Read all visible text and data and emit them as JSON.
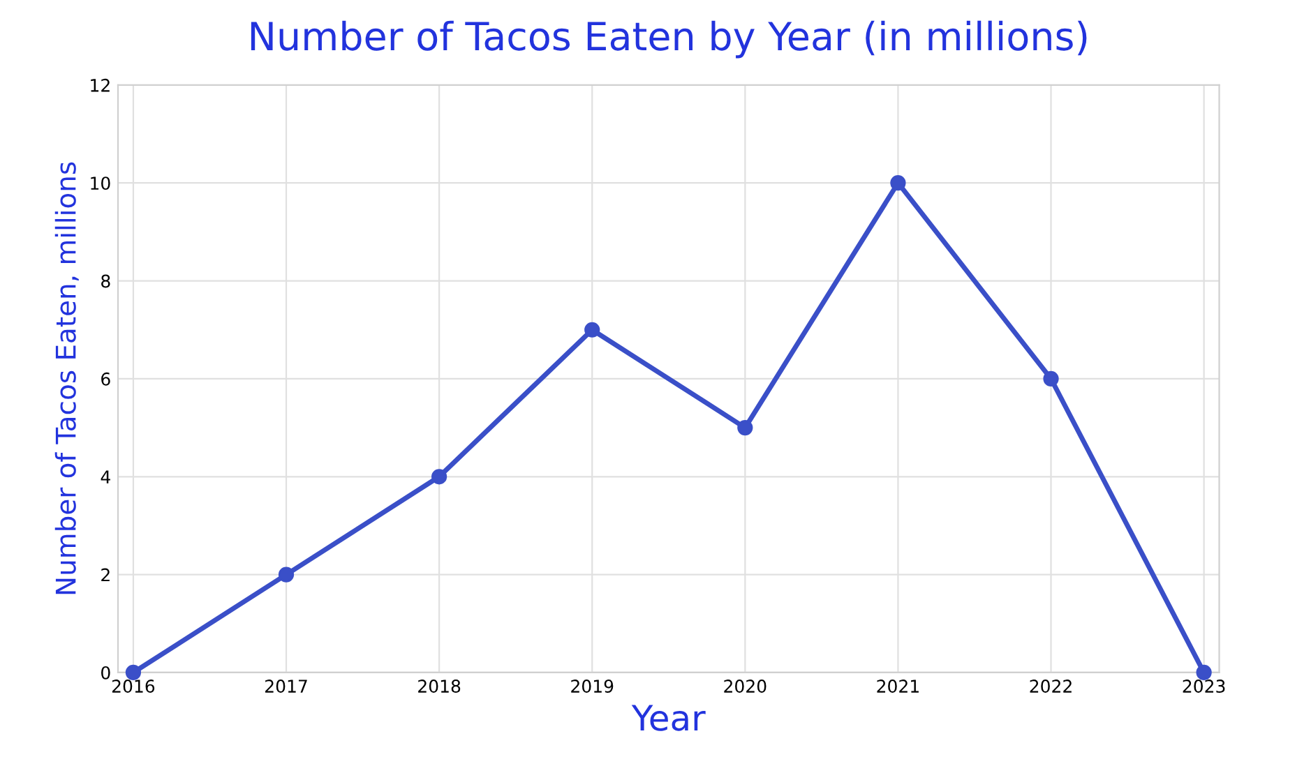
{
  "chart_data": {
    "type": "line",
    "title": "Number of Tacos Eaten by Year (in millions)",
    "xlabel": "Year",
    "ylabel": "Number of Tacos Eaten, millions",
    "categories": [
      "2016",
      "2017",
      "2018",
      "2019",
      "2020",
      "2021",
      "2022",
      "2023"
    ],
    "series": [
      {
        "color": "#3a4fc8",
        "values": [
          0,
          2,
          4,
          7,
          5,
          10,
          6,
          0
        ]
      }
    ],
    "ylim": [
      0,
      12
    ],
    "yticks": [
      0,
      2,
      4,
      6,
      8,
      10,
      12
    ],
    "grid": true,
    "marker": "circle",
    "line_style": "solid"
  }
}
